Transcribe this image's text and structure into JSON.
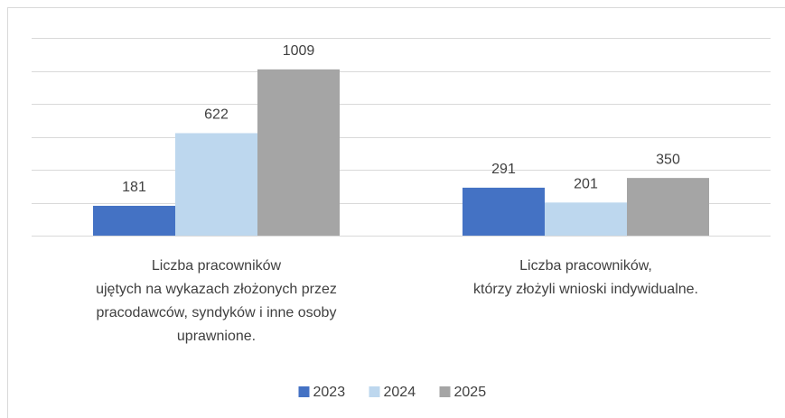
{
  "chart_data": {
    "type": "bar",
    "categories": [
      "Liczba pracowników\nujętych na wykazach złożonych przez\npracodawców, syndyków i inne osoby\nuprawnione.",
      "Liczba pracowników,\nktórzy złożyli wnioski indywidualne."
    ],
    "series": [
      {
        "name": "2023",
        "color": "#4472c4",
        "values": [
          181,
          291
        ]
      },
      {
        "name": "2024",
        "color": "#bdd7ee",
        "values": [
          622,
          201
        ]
      },
      {
        "name": "2025",
        "color": "#a5a5a5",
        "values": [
          1009,
          350
        ]
      }
    ],
    "ylim": [
      0,
      1200
    ],
    "yticks": [
      0,
      200,
      400,
      600,
      800,
      1000,
      1200
    ],
    "grid": true,
    "legend": "bottom"
  }
}
